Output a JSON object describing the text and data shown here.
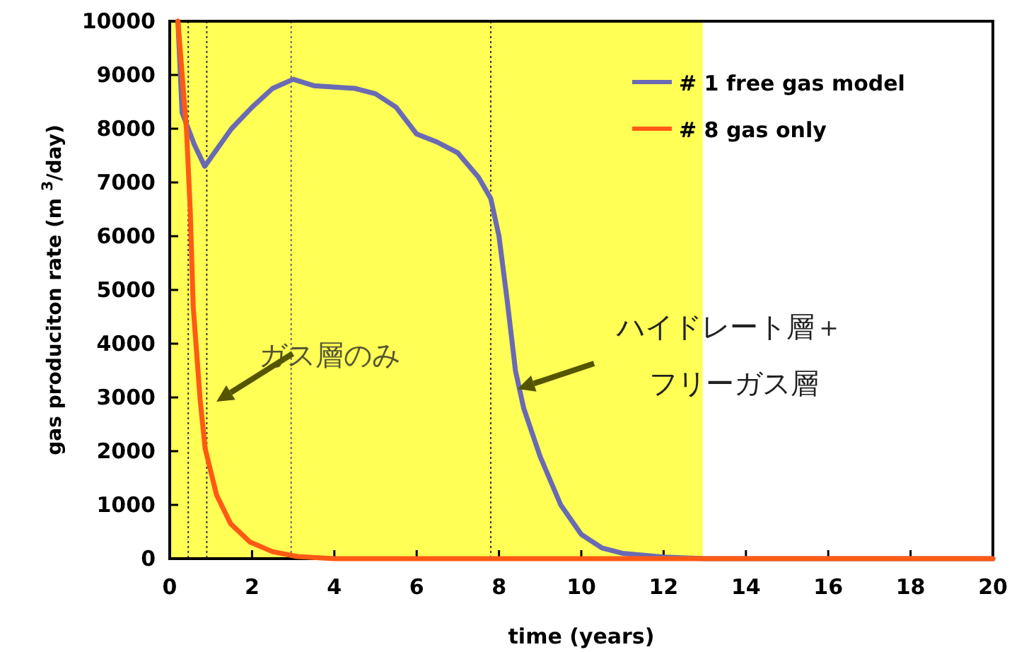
{
  "chart_data": {
    "type": "line",
    "xlabel": "time (years)",
    "ylabel": "gas produciton rate (m $^{3}$/day)",
    "xlim": [
      0,
      20
    ],
    "ylim": [
      0,
      10000
    ],
    "xticks": [
      0,
      2,
      4,
      6,
      8,
      10,
      12,
      14,
      16,
      18,
      20
    ],
    "yticks": [
      0,
      1000,
      2000,
      3000,
      4000,
      5000,
      6000,
      7000,
      8000,
      9000,
      10000
    ],
    "legend": "top right",
    "grid": false,
    "marker": "none",
    "line_style": "solid",
    "series": [
      {
        "name": "# 1 free gas model",
        "color": "#6a6ab4",
        "x": [
          0.2,
          0.3,
          0.6,
          0.85,
          1.5,
          2.0,
          2.5,
          3.0,
          3.5,
          4.5,
          5.0,
          5.5,
          6.0,
          6.5,
          7.0,
          7.5,
          7.8,
          8.0,
          8.2,
          8.4,
          8.6,
          9.0,
          9.5,
          10,
          10.5,
          11,
          12,
          13,
          20
        ],
        "values": [
          10000,
          8300,
          7700,
          7300,
          8000,
          8400,
          8750,
          8920,
          8800,
          8750,
          8650,
          8400,
          7900,
          7750,
          7550,
          7100,
          6700,
          6000,
          4800,
          3500,
          2800,
          1900,
          1000,
          450,
          200,
          100,
          30,
          0,
          0
        ]
      },
      {
        "name": "# 8 gas only",
        "color": "#ff5a14",
        "x": [
          0.2,
          0.41,
          0.5,
          0.57,
          0.74,
          0.86,
          1.14,
          1.48,
          1.95,
          2.5,
          3.1,
          4,
          20
        ],
        "values": [
          10000,
          7950,
          6450,
          4700,
          2950,
          2050,
          1180,
          650,
          310,
          130,
          40,
          0,
          0
        ]
      }
    ],
    "bands": [
      {
        "axis": "x",
        "from": 0,
        "to": 12.95,
        "color": "#ffff55"
      }
    ],
    "ref_lines": [
      {
        "axis": "x",
        "value": 0.45,
        "line_style": "dotted",
        "color": "#333333"
      },
      {
        "axis": "x",
        "value": 0.9,
        "line_style": "dotted",
        "color": "#333333"
      },
      {
        "axis": "x",
        "value": 2.95,
        "line_style": "dotted",
        "color": "#666666"
      },
      {
        "axis": "x",
        "value": 7.8,
        "line_style": "dotted",
        "color": "#333333"
      }
    ],
    "annotations": [
      "ガス層のみ",
      "ハイドレート層＋",
      "フリーガス層"
    ]
  }
}
